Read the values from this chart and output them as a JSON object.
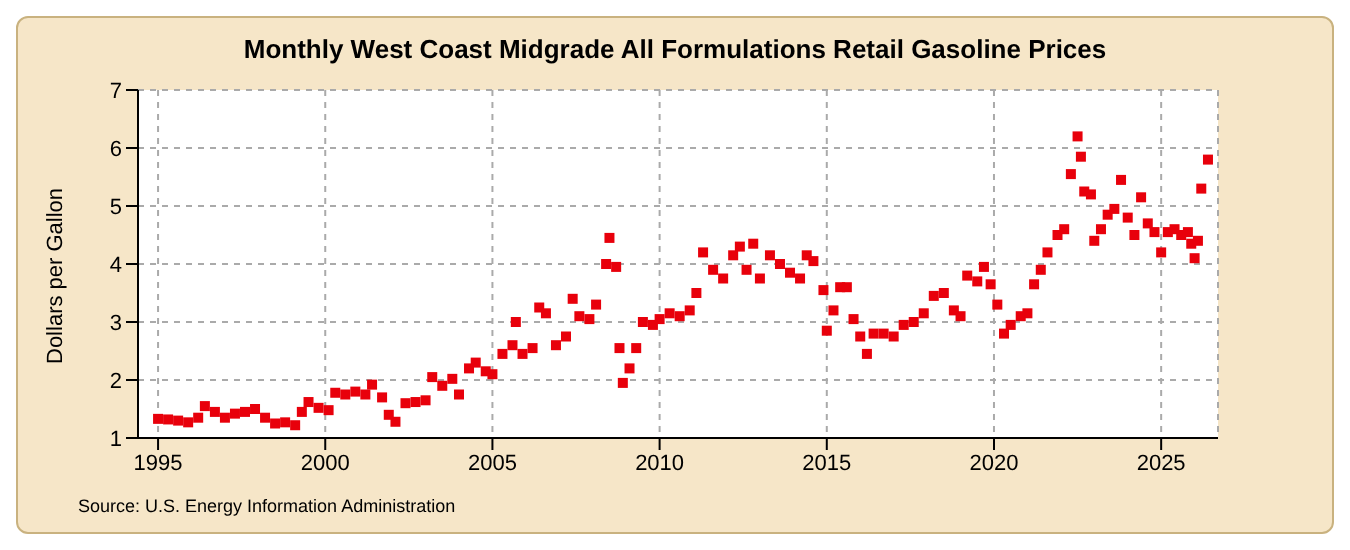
{
  "chart_data": {
    "type": "scatter",
    "title": "Monthly West Coast Midgrade All Formulations Retail Gasoline Prices",
    "ylabel": "Dollars per Gallon",
    "annotations": [
      "Source: U.S. Energy Information Administration"
    ],
    "x": [
      1995.0,
      1995.3,
      1995.6,
      1995.9,
      1996.2,
      1996.4,
      1996.7,
      1997.0,
      1997.3,
      1997.6,
      1997.9,
      1998.2,
      1998.5,
      1998.8,
      1999.1,
      1999.3,
      1999.5,
      1999.8,
      2000.1,
      2000.3,
      2000.6,
      2000.9,
      2001.2,
      2001.4,
      2001.7,
      2001.9,
      2002.1,
      2002.4,
      2002.7,
      2003.0,
      2003.2,
      2003.5,
      2003.8,
      2004.0,
      2004.3,
      2004.5,
      2004.8,
      2005.0,
      2005.3,
      2005.6,
      2005.7,
      2005.9,
      2006.2,
      2006.4,
      2006.6,
      2006.9,
      2007.2,
      2007.4,
      2007.6,
      2007.9,
      2008.1,
      2008.4,
      2008.5,
      2008.7,
      2008.8,
      2008.9,
      2009.1,
      2009.3,
      2009.5,
      2009.8,
      2010.0,
      2010.3,
      2010.6,
      2010.9,
      2011.1,
      2011.3,
      2011.6,
      2011.9,
      2012.2,
      2012.4,
      2012.6,
      2012.8,
      2013.0,
      2013.3,
      2013.6,
      2013.9,
      2014.2,
      2014.4,
      2014.6,
      2014.9,
      2015.0,
      2015.2,
      2015.4,
      2015.6,
      2015.8,
      2016.0,
      2016.2,
      2016.4,
      2016.7,
      2017.0,
      2017.3,
      2017.6,
      2017.9,
      2018.2,
      2018.5,
      2018.8,
      2019.0,
      2019.2,
      2019.5,
      2019.7,
      2019.9,
      2020.1,
      2020.3,
      2020.5,
      2020.8,
      2021.0,
      2021.2,
      2021.4,
      2021.6,
      2021.9,
      2022.1,
      2022.3,
      2022.5,
      2022.6,
      2022.7,
      2022.9,
      2023.0,
      2023.2,
      2023.4,
      2023.6,
      2023.8,
      2024.0,
      2024.2,
      2024.4,
      2024.6,
      2024.8,
      2025.0,
      2025.2,
      2025.4,
      2025.6,
      2025.8,
      2025.9,
      2026.0,
      2026.1,
      2026.2,
      2026.4
    ],
    "series": [
      {
        "color": "#e8000b",
        "values": [
          1.33,
          1.32,
          1.3,
          1.27,
          1.35,
          1.55,
          1.45,
          1.35,
          1.42,
          1.45,
          1.5,
          1.35,
          1.25,
          1.27,
          1.22,
          1.45,
          1.62,
          1.52,
          1.48,
          1.78,
          1.75,
          1.8,
          1.75,
          1.92,
          1.7,
          1.4,
          1.28,
          1.6,
          1.62,
          1.65,
          2.05,
          1.9,
          2.02,
          1.75,
          2.2,
          2.3,
          2.15,
          2.1,
          2.45,
          2.6,
          3.0,
          2.45,
          2.55,
          3.25,
          3.15,
          2.6,
          2.75,
          3.4,
          3.1,
          3.05,
          3.3,
          4.0,
          4.45,
          3.95,
          2.55,
          1.95,
          2.2,
          2.55,
          3.0,
          2.95,
          3.05,
          3.15,
          3.1,
          3.2,
          3.5,
          4.2,
          3.9,
          3.75,
          4.15,
          4.3,
          3.9,
          4.35,
          3.75,
          4.15,
          4.0,
          3.85,
          3.75,
          4.15,
          4.05,
          3.55,
          2.85,
          3.2,
          3.6,
          3.6,
          3.05,
          2.75,
          2.45,
          2.8,
          2.8,
          2.75,
          2.95,
          3.0,
          3.15,
          3.45,
          3.5,
          3.2,
          3.1,
          3.8,
          3.7,
          3.95,
          3.65,
          3.3,
          2.8,
          2.95,
          3.1,
          3.15,
          3.65,
          3.9,
          4.2,
          4.5,
          4.6,
          5.55,
          6.2,
          5.85,
          5.25,
          5.2,
          4.4,
          4.6,
          4.85,
          4.95,
          5.45,
          4.8,
          4.5,
          5.15,
          4.7,
          4.55,
          4.2,
          4.55,
          4.6,
          4.5,
          4.55,
          4.35,
          4.1,
          4.4,
          5.3,
          5.8
        ]
      }
    ],
    "xlim": [
      1994.4,
      2026.7
    ],
    "xticks": [
      1995,
      2000,
      2005,
      2010,
      2015,
      2020,
      2025
    ],
    "ylim": [
      1,
      7
    ],
    "yticks": [
      1,
      2,
      3,
      4,
      5,
      6,
      7
    ],
    "grid": true,
    "marker": "square",
    "legend": false
  }
}
